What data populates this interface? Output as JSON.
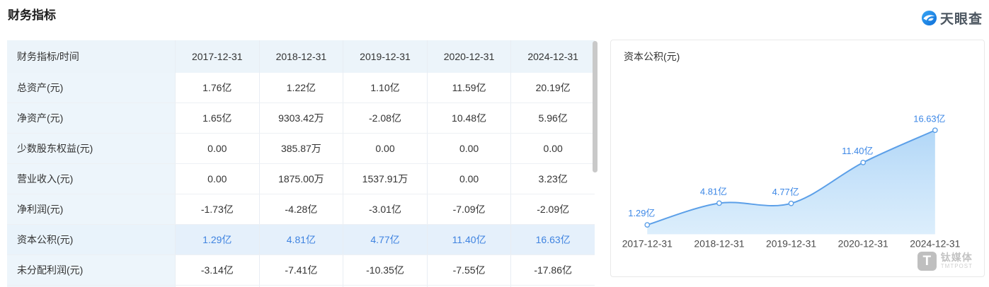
{
  "page_title": "财务指标",
  "brand": {
    "name": "天眼查"
  },
  "table": {
    "header": [
      "财务指标/时间",
      "2017-12-31",
      "2018-12-31",
      "2019-12-31",
      "2020-12-31",
      "2024-12-31"
    ],
    "rows": [
      {
        "label": "总资产(元)",
        "values": [
          "1.76亿",
          "1.22亿",
          "1.10亿",
          "11.59亿",
          "20.19亿"
        ],
        "highlight": false
      },
      {
        "label": "净资产(元)",
        "values": [
          "1.65亿",
          "9303.42万",
          "-2.08亿",
          "10.48亿",
          "5.96亿"
        ],
        "highlight": false
      },
      {
        "label": "少数股东权益(元)",
        "values": [
          "0.00",
          "385.87万",
          "0.00",
          "0.00",
          "0.00"
        ],
        "highlight": false
      },
      {
        "label": "营业收入(元)",
        "values": [
          "0.00",
          "1875.00万",
          "1537.91万",
          "0.00",
          "3.23亿"
        ],
        "highlight": false
      },
      {
        "label": "净利润(元)",
        "values": [
          "-1.73亿",
          "-4.28亿",
          "-3.01亿",
          "-7.09亿",
          "-2.09亿"
        ],
        "highlight": false
      },
      {
        "label": "资本公积(元)",
        "values": [
          "1.29亿",
          "4.81亿",
          "4.77亿",
          "11.40亿",
          "16.63亿"
        ],
        "highlight": true
      },
      {
        "label": "未分配利润(元)",
        "values": [
          "-3.14亿",
          "-7.41亿",
          "-10.35亿",
          "-7.55亿",
          "-17.86亿"
        ],
        "highlight": false
      }
    ]
  },
  "chart_data": {
    "type": "area",
    "title": "资本公积(元)",
    "categories": [
      "2017-12-31",
      "2018-12-31",
      "2019-12-31",
      "2020-12-31",
      "2024-12-31"
    ],
    "values": [
      1.29,
      4.81,
      4.77,
      11.4,
      16.63
    ],
    "value_labels": [
      "1.29亿",
      "4.81亿",
      "4.77亿",
      "11.40亿",
      "16.63亿"
    ],
    "unit": "亿",
    "ylim": [
      0,
      18
    ],
    "grid": false,
    "legend": false,
    "smooth": true,
    "line_color": "#5b9fe8",
    "label_color": "#3c87e6",
    "xlabel_color": "#4a4a4a",
    "area_gradient": [
      "#aed5f7",
      "#d6ebfb"
    ]
  },
  "watermark": {
    "cn": "钛媒体",
    "en": "TMTPOST"
  },
  "colors": {
    "header_bg": "#ecf4fa",
    "highlight_bg": "#e5f0fb",
    "highlight_text": "#3f83e0",
    "accent_blue": "#5b9fe8",
    "brand_blue": "#1c86ee"
  }
}
